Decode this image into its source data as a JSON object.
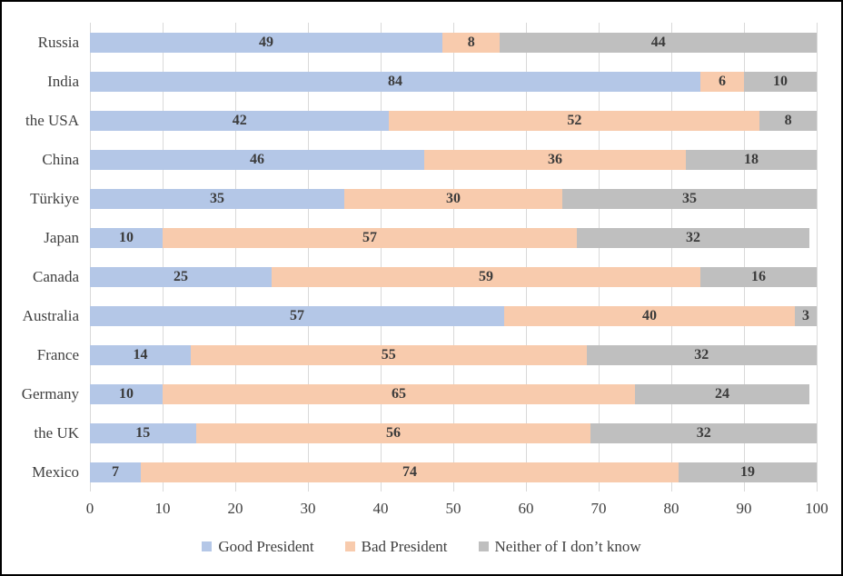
{
  "chart_data": {
    "type": "bar",
    "orientation": "horizontal",
    "stacked": true,
    "title": "",
    "xlabel": "",
    "ylabel": "",
    "xlim": [
      0,
      100
    ],
    "x_ticks": [
      0,
      10,
      20,
      30,
      40,
      50,
      60,
      70,
      80,
      90,
      100
    ],
    "grid": "vertical",
    "legend_position": "bottom",
    "categories": [
      "Russia",
      "India",
      "the USA",
      "China",
      "Türkiye",
      "Japan",
      "Canada",
      "Australia",
      "France",
      "Germany",
      "the UK",
      "Mexico"
    ],
    "series": [
      {
        "name": "Good President",
        "color": "#b4c7e7",
        "values": [
          49,
          84,
          42,
          46,
          35,
          10,
          25,
          57,
          14,
          10,
          15,
          7
        ]
      },
      {
        "name": "Bad President",
        "color": "#f8cbad",
        "values": [
          8,
          6,
          52,
          36,
          30,
          57,
          59,
          40,
          55,
          65,
          56,
          74
        ]
      },
      {
        "name": "Neither of I don’t know",
        "color": "#bfbfbf",
        "values": [
          44,
          10,
          8,
          18,
          35,
          32,
          16,
          3,
          32,
          24,
          32,
          19
        ]
      }
    ]
  },
  "colors": {
    "background": "#ffffff",
    "border": "#000000",
    "gridline": "#d9d9d9",
    "text": "#404040",
    "data_label": "#3b3b3b"
  }
}
